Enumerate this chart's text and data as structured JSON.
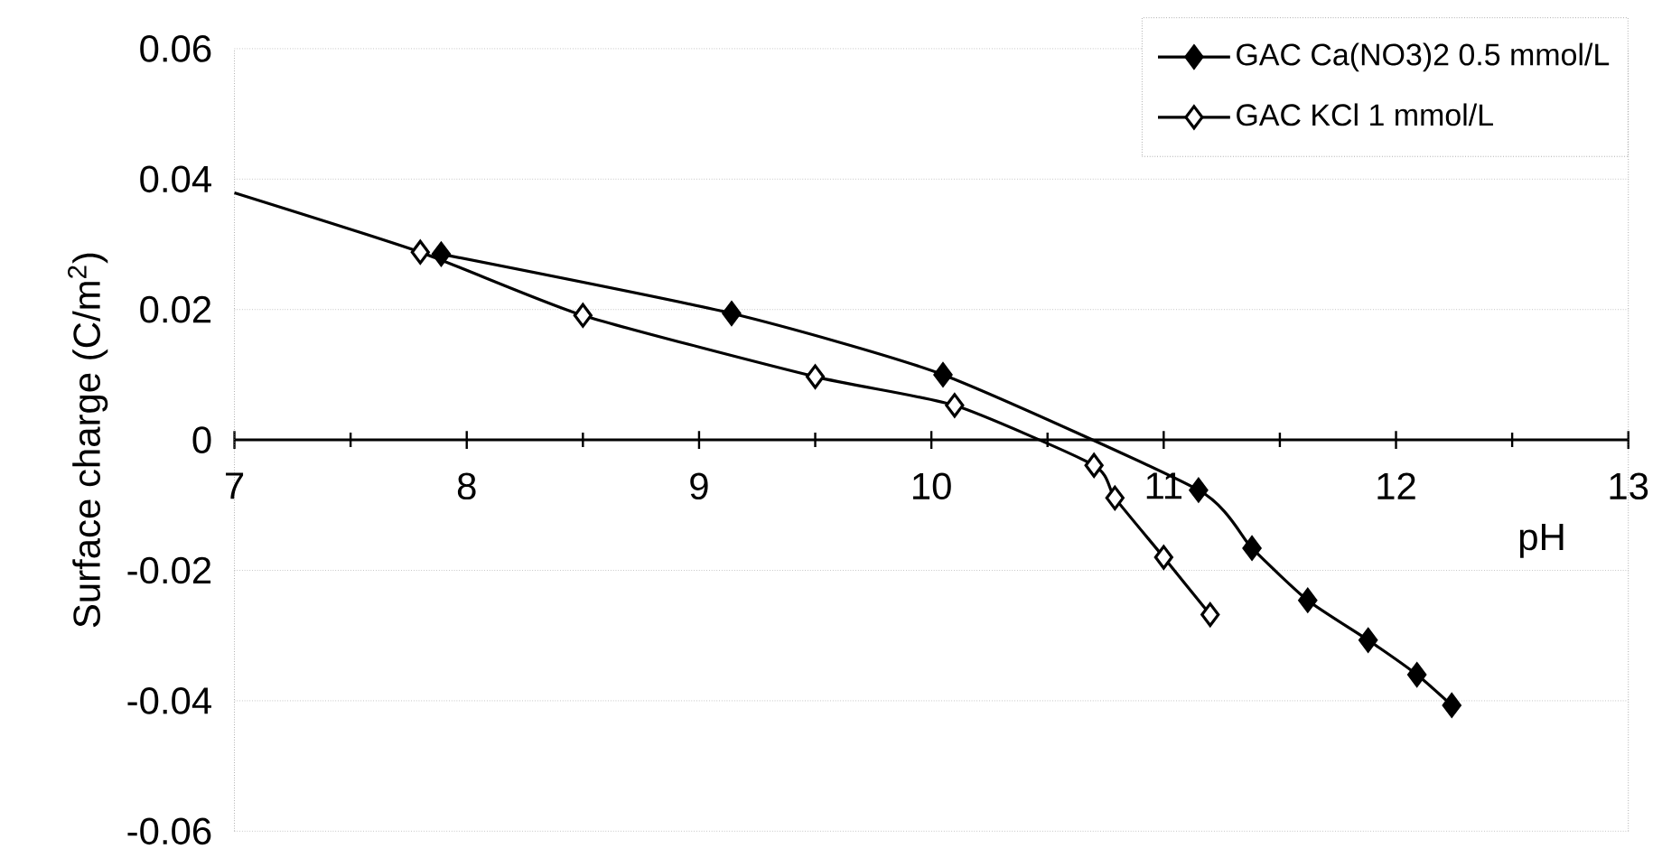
{
  "chart_data": {
    "type": "line",
    "xlabel": "pH",
    "ylabel": "Surface charge (C/m$^{2}$)",
    "xlim": [
      7,
      13
    ],
    "ylim": [
      -0.06,
      0.06
    ],
    "xticks": [
      7,
      8,
      9,
      10,
      11,
      12,
      13
    ],
    "yticks": [
      -0.06,
      -0.04,
      -0.02,
      0,
      0.02,
      0.04,
      0.06
    ],
    "grid": "y",
    "legend": "top right",
    "marker": "diamond",
    "line_style": "solid",
    "series": [
      {
        "name": "GAC  Ca(NO3)2 0.5 mmol/L",
        "color": "#000000",
        "x": [
          7.89,
          9.14,
          10.05,
          11.15,
          11.38,
          11.62,
          11.88,
          12.09,
          12.24
        ],
        "values": [
          0.0285,
          0.0194,
          0.01,
          -0.0077,
          -0.0166,
          -0.0246,
          -0.0307,
          -0.036,
          -0.0407
        ]
      },
      {
        "name": "GAC  KCl 1 mmol/L",
        "color": "#000000",
        "x": [
          7.0,
          7.8,
          8.5,
          9.5,
          10.1,
          10.7,
          10.79,
          11.0,
          11.2
        ],
        "values": [
          0.0379,
          0.0288,
          0.0191,
          0.0097,
          0.0053,
          -0.0039,
          -0.0089,
          -0.018,
          -0.0268
        ]
      }
    ]
  }
}
